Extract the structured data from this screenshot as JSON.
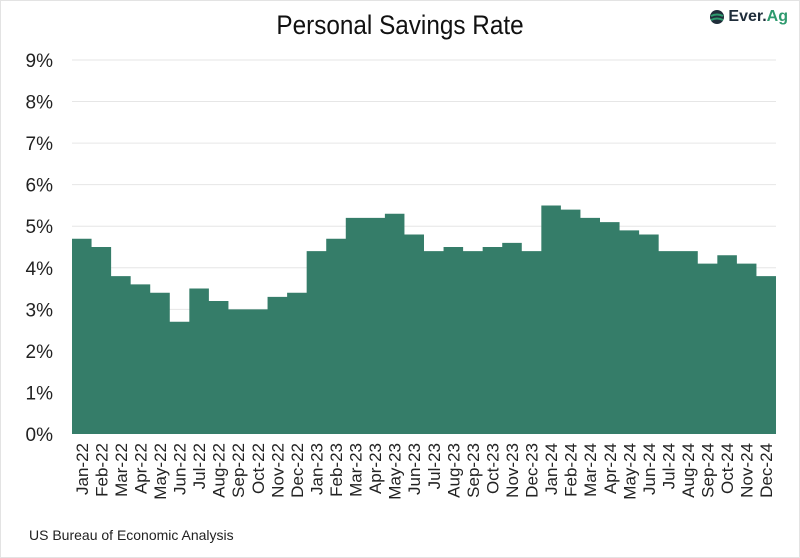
{
  "header": {
    "title": "Personal Savings Rate",
    "logo_text_main": "Ever.",
    "logo_text_accent": "Ag"
  },
  "footer": {
    "source": "US Bureau of Economic Analysis"
  },
  "colors": {
    "bar": "#357d69",
    "grid": "#e6e6e6",
    "logo_accent": "#2e9a6e"
  },
  "chart_data": {
    "type": "area",
    "title": "Personal Savings Rate",
    "xlabel": "",
    "ylabel": "",
    "ylim": [
      0,
      9
    ],
    "yticks": [
      "0%",
      "1%",
      "2%",
      "3%",
      "4%",
      "5%",
      "6%",
      "7%",
      "8%",
      "9%"
    ],
    "grid": true,
    "legend": "none",
    "style": "step",
    "categories": [
      "Jan-22",
      "Feb-22",
      "Mar-22",
      "Apr-22",
      "May-22",
      "Jun-22",
      "Jul-22",
      "Aug-22",
      "Sep-22",
      "Oct-22",
      "Nov-22",
      "Dec-22",
      "Jan-23",
      "Feb-23",
      "Mar-23",
      "Apr-23",
      "May-23",
      "Jun-23",
      "Jul-23",
      "Aug-23",
      "Sep-23",
      "Oct-23",
      "Nov-23",
      "Dec-23",
      "Jan-24",
      "Feb-24",
      "Mar-24",
      "Apr-24",
      "May-24",
      "Jun-24",
      "Jul-24",
      "Aug-24",
      "Sep-24",
      "Oct-24",
      "Nov-24",
      "Dec-24"
    ],
    "values": [
      4.7,
      4.5,
      3.8,
      3.6,
      3.4,
      2.7,
      3.5,
      3.2,
      3.0,
      3.0,
      3.3,
      3.4,
      4.4,
      4.7,
      5.2,
      5.2,
      5.3,
      4.8,
      4.4,
      4.5,
      4.4,
      4.5,
      4.6,
      4.4,
      5.5,
      5.4,
      5.2,
      5.1,
      4.9,
      4.8,
      4.4,
      4.4,
      4.1,
      4.3,
      4.1,
      3.8
    ],
    "source": "US Bureau of Economic Analysis"
  }
}
